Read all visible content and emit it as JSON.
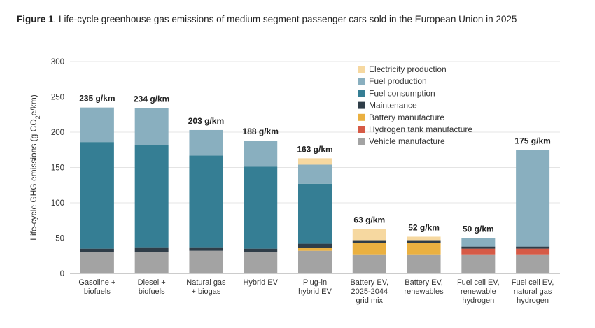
{
  "figure": {
    "label": "Figure 1",
    "title": ". Life-cycle greenhouse gas emissions of medium segment passenger cars sold in the European Union in 2025"
  },
  "chart_data": {
    "type": "bar",
    "stacked": true,
    "ylabel_parts": [
      "Life-cycle GHG emissions (g CO",
      "2",
      "e/km)"
    ],
    "ylim": [
      0,
      300
    ],
    "yticks": [
      0,
      50,
      100,
      150,
      200,
      250,
      300
    ],
    "grid": true,
    "legend_position": "top-right",
    "categories": [
      [
        "Gasoline +",
        "biofuels"
      ],
      [
        "Diesel +",
        "biofuels"
      ],
      [
        "Natural gas",
        "+ biogas"
      ],
      [
        "Hybrid EV"
      ],
      [
        "Plug-in",
        "hybrid EV"
      ],
      [
        "Battery EV,",
        "2025-2044",
        "grid mix"
      ],
      [
        "Battery EV,",
        "renewables"
      ],
      [
        "Fuel cell EV,",
        "renewable",
        "hydrogen"
      ],
      [
        "Fuel cell EV,",
        "natural gas",
        "hydrogen"
      ]
    ],
    "totals": [
      "235 g/km",
      "234 g/km",
      "203 g/km",
      "188 g/km",
      "163 g/km",
      "63 g/km",
      "52 g/km",
      "50 g/km",
      "175 g/km"
    ],
    "series": [
      {
        "name": "Vehicle manufacture",
        "color": "#a3a3a3",
        "values": [
          30,
          30,
          32,
          30,
          32,
          27,
          27,
          27,
          27
        ]
      },
      {
        "name": "Hydrogen tank manufacture",
        "color": "#d65a46",
        "values": [
          0,
          0,
          0,
          0,
          0,
          0,
          0,
          8,
          8
        ]
      },
      {
        "name": "Battery manufacture",
        "color": "#eab040",
        "values": [
          0,
          0,
          0,
          0,
          4,
          16,
          16,
          0,
          0
        ]
      },
      {
        "name": "Maintenance",
        "color": "#2f3d48",
        "values": [
          5,
          7,
          5,
          5,
          6,
          4,
          4,
          3,
          3
        ]
      },
      {
        "name": "Fuel consumption",
        "color": "#357e94",
        "values": [
          151,
          145,
          130,
          116,
          85,
          0,
          0,
          0,
          0
        ]
      },
      {
        "name": "Fuel production",
        "color": "#89afbf",
        "values": [
          49,
          52,
          36,
          37,
          27,
          0,
          0,
          12,
          137
        ]
      },
      {
        "name": "Electricity production",
        "color": "#f6d8a0",
        "values": [
          0,
          0,
          0,
          0,
          9,
          16,
          5,
          0,
          0
        ]
      }
    ]
  }
}
